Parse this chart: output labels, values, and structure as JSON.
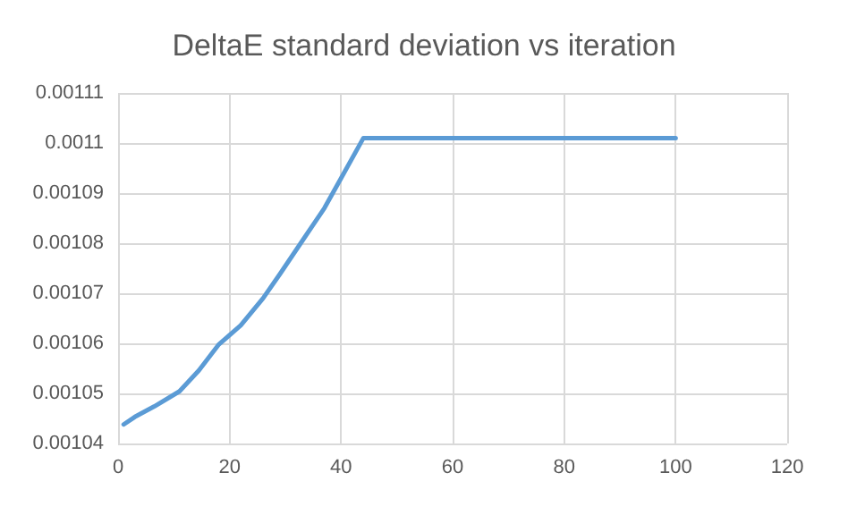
{
  "chart_data": {
    "type": "line",
    "title": "DeltaE standard deviation vs iteration",
    "x": [
      1,
      3,
      6.5,
      11,
      14.5,
      18,
      22,
      26,
      29,
      33,
      37,
      40,
      44,
      100
    ],
    "series": [
      {
        "color": "#5b9bd5",
        "values": [
          0.0010438,
          0.0010453,
          0.0010474,
          0.0010504,
          0.0010546,
          0.0010597,
          0.0010636,
          0.001069,
          0.0010738,
          0.0010804,
          0.001087,
          0.001093,
          0.001101,
          0.001101
        ]
      }
    ],
    "xlim": [
      0,
      120
    ],
    "xticks": [
      0,
      20,
      40,
      60,
      80,
      100,
      120
    ],
    "ylim": [
      0.00104,
      0.00111
    ],
    "yticks": [
      0.00104,
      0.00105,
      0.00106,
      0.00107,
      0.00108,
      0.00109,
      0.0011,
      0.00111
    ],
    "grid": true,
    "marker": "none",
    "line_style": "solid"
  }
}
